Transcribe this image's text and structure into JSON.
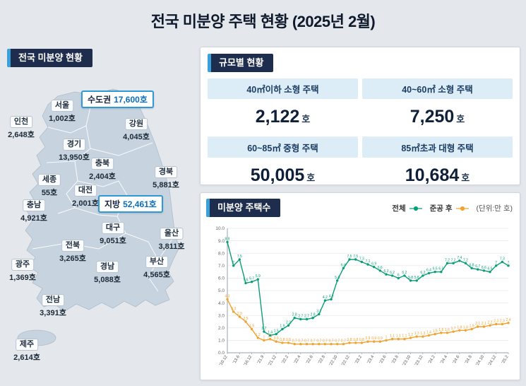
{
  "title": "전국 미분양 주택 현황 (2025년 2월)",
  "map_panel": {
    "header": "전국 미분양 현황",
    "highlights": [
      {
        "id": "sudogwon",
        "name": "수도권",
        "value": "17,600호"
      },
      {
        "id": "jibang",
        "name": "지방",
        "value": "52,461호"
      }
    ],
    "regions": [
      {
        "id": "seoul",
        "name": "서울",
        "value": "1,002호"
      },
      {
        "id": "incheon",
        "name": "인천",
        "value": "2,648호"
      },
      {
        "id": "gangwon",
        "name": "강원",
        "value": "4,045호"
      },
      {
        "id": "gyeonggi",
        "name": "경기",
        "value": "13,950호"
      },
      {
        "id": "chungbuk",
        "name": "충북",
        "value": "2,404호"
      },
      {
        "id": "gyeongbuk",
        "name": "경북",
        "value": "5,881호"
      },
      {
        "id": "sejong",
        "name": "세종",
        "value": "55호"
      },
      {
        "id": "daejeon",
        "name": "대전",
        "value": "2,001호"
      },
      {
        "id": "chungnam",
        "name": "충남",
        "value": "4,921호"
      },
      {
        "id": "daegu",
        "name": "대구",
        "value": "9,051호"
      },
      {
        "id": "ulsan",
        "name": "울산",
        "value": "3,811호"
      },
      {
        "id": "jeonbuk",
        "name": "전북",
        "value": "3,265호"
      },
      {
        "id": "busan",
        "name": "부산",
        "value": "4,565호"
      },
      {
        "id": "gwangju",
        "name": "광주",
        "value": "1,369호"
      },
      {
        "id": "gyeongnam",
        "name": "경남",
        "value": "5,088호"
      },
      {
        "id": "jeonnam",
        "name": "전남",
        "value": "3,391호"
      },
      {
        "id": "jeju",
        "name": "제주",
        "value": "2,614호"
      }
    ]
  },
  "size_panel": {
    "header": "규모별 현황",
    "cells": [
      {
        "label": "40㎡이하 소형 주택",
        "value": "2,122",
        "unit": "호"
      },
      {
        "label": "40~60㎡ 소형 주택",
        "value": "7,250",
        "unit": "호"
      },
      {
        "label": "60~85㎡ 중형 주택",
        "value": "50,005",
        "unit": "호"
      },
      {
        "label": "85㎡초과 대형 주택",
        "value": "10,684",
        "unit": "호"
      }
    ]
  },
  "chart_panel": {
    "header": "미분양 주택수",
    "legend": [
      {
        "label": "전체",
        "color": "#0a9e78"
      },
      {
        "label": "준공 후",
        "color": "#f0a32f"
      }
    ],
    "unit_note": "(단위:만 호)"
  },
  "chart_data": {
    "type": "line",
    "title": "미분양 주택수",
    "ylabel": "만 호",
    "ylim": [
      0,
      10
    ],
    "ytick_step": 1,
    "grid": true,
    "legend_position": "top-right",
    "label_every": 2,
    "x_labels": [
      "'10.12",
      "'13.6",
      "'16.12",
      "'21.9",
      "'21.12",
      "'22.2",
      "'22.4",
      "'22.6",
      "'22.8",
      "'22.10",
      "'22.12",
      "'23.2",
      "'23.4",
      "'23.6",
      "'23.8",
      "'23.10",
      "'23.12",
      "'24.2",
      "'24.4",
      "'24.6",
      "'24.8",
      "'24.10",
      "'24.12",
      "'25.2"
    ],
    "series": [
      {
        "name": "전체",
        "color": "#0a9e78",
        "values": [
          8.9,
          7.0,
          7.5,
          5.6,
          5.7,
          5.9,
          1.7,
          1.4,
          1.5,
          1.9,
          2.2,
          2.8,
          2.7,
          2.7,
          2.8,
          3.1,
          4.2,
          4.3,
          5.8,
          6.8,
          7.5,
          7.5,
          7.3,
          7.1,
          6.9,
          6.6,
          6.3,
          6.2,
          6.0,
          6.2,
          5.8,
          5.8,
          6.2,
          6.4,
          6.5,
          6.5,
          7.2,
          7.2,
          7.4,
          7.2,
          6.8,
          6.7,
          6.6,
          6.5,
          7.0,
          7.3,
          7.0
        ]
      },
      {
        "name": "준공 후",
        "color": "#f0a32f",
        "values": [
          4.3,
          3.3,
          2.9,
          2.5,
          1.9,
          1.2,
          1.0,
          1.1,
          0.9,
          0.8,
          0.8,
          0.7,
          0.7,
          0.7,
          0.7,
          0.7,
          0.7,
          0.7,
          0.7,
          0.7,
          0.8,
          0.8,
          0.8,
          0.9,
          0.9,
          0.9,
          1.0,
          1.1,
          1.1,
          1.1,
          1.2,
          1.3,
          1.3,
          1.4,
          1.5,
          1.6,
          1.6,
          1.7,
          1.8,
          1.8,
          1.9,
          2.1,
          2.1,
          2.2,
          2.3,
          2.3,
          2.4
        ]
      }
    ]
  }
}
